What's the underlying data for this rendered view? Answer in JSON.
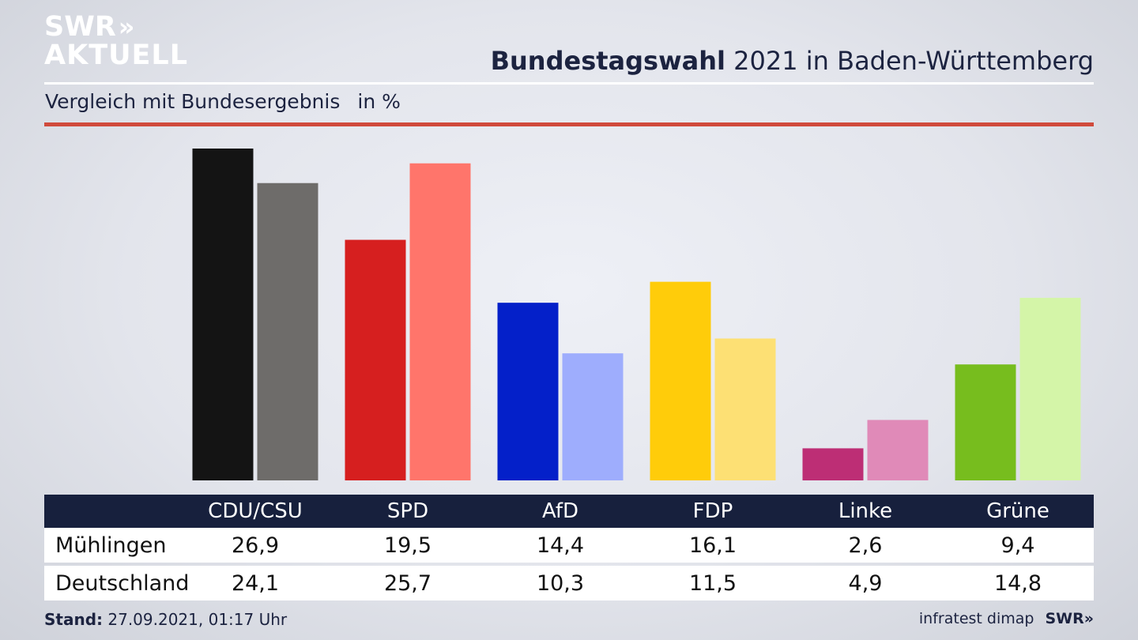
{
  "logo": {
    "line1": "SWR",
    "chevrons": "»",
    "line2": "AKTUELL"
  },
  "header": {
    "title_bold": "Bundestagswahl",
    "title_rest": " 2021 in Baden-Württemberg",
    "subtitle": "Vergleich mit Bundesergebnis",
    "unit": "in %"
  },
  "colors": {
    "red_rule": "#d04a3c",
    "table_header_bg": "#17203d",
    "text_dark": "#1c2340"
  },
  "chart_data": {
    "type": "bar",
    "categories": [
      "CDU/CSU",
      "SPD",
      "AfD",
      "FDP",
      "Linke",
      "Grüne"
    ],
    "series": [
      {
        "name": "Mühlingen",
        "values": [
          26.9,
          19.5,
          14.4,
          16.1,
          2.6,
          9.4
        ],
        "colors": [
          "#141414",
          "#d61f1f",
          "#0420c9",
          "#ffcc0a",
          "#bd2e75",
          "#77bd1e"
        ]
      },
      {
        "name": "Deutschland",
        "values": [
          24.1,
          25.7,
          10.3,
          11.5,
          4.9,
          14.8
        ],
        "colors": [
          "#6e6c6a",
          "#ff756b",
          "#9eadfd",
          "#fde074",
          "#e08ab8",
          "#d4f5a8"
        ]
      }
    ],
    "ylim": [
      0,
      26.9
    ]
  },
  "table": {
    "headers": [
      "CDU/CSU",
      "SPD",
      "AfD",
      "FDP",
      "Linke",
      "Grüne"
    ],
    "rows": [
      {
        "label": "Mühlingen",
        "values": [
          "26,9",
          "19,5",
          "14,4",
          "16,1",
          "2,6",
          "9,4"
        ]
      },
      {
        "label": "Deutschland",
        "values": [
          "24,1",
          "25,7",
          "10,3",
          "11,5",
          "4,9",
          "14,8"
        ]
      }
    ]
  },
  "footer": {
    "stand_label": "Stand:",
    "stand_value": " 27.09.2021, 01:17 Uhr",
    "source": "infratest dimap",
    "brand": "SWR»"
  }
}
